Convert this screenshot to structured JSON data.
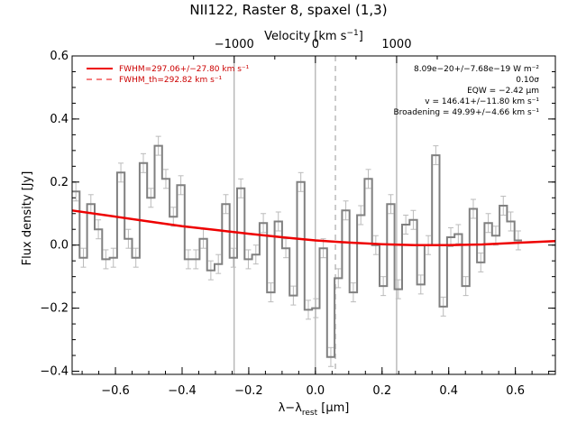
{
  "chart_data": {
    "type": "line",
    "title": "NII122, Raster 8, spaxel (1,3)",
    "xlabel_main": "λ−λ",
    "xlabel_sub": "rest",
    "xlabel_unit": " [μm]",
    "ylabel": "Flux density [Jy]",
    "top_xlabel": "Velocity [km s",
    "top_xlabel_sup": "−1",
    "top_xlabel_end": "]",
    "xlim": [
      -0.73,
      0.72
    ],
    "ylim": [
      -0.41,
      0.6
    ],
    "xticks": [
      -0.6,
      -0.4,
      -0.2,
      0.0,
      0.2,
      0.4,
      0.6
    ],
    "xtick_labels": [
      "−0.6",
      "−0.4",
      "−0.2",
      "0.0",
      "0.2",
      "0.4",
      "0.6"
    ],
    "yticks": [
      -0.4,
      -0.2,
      0.0,
      0.2,
      0.4,
      0.6
    ],
    "ytick_labels": [
      "−0.4",
      "−0.2",
      "0.0",
      "0.2",
      "0.4",
      "0.6"
    ],
    "top_ticks_lambda": [
      -0.2437,
      0.0,
      0.2437
    ],
    "top_tick_labels": [
      "−1000",
      "0",
      "1000"
    ],
    "vlines_solid": [
      -0.2437,
      0.0,
      0.2437
    ],
    "vline_dashed": 0.06,
    "bin_width": 0.0225,
    "x_start": -0.73,
    "series": [
      {
        "name": "spectrum",
        "values": [
          0.17,
          -0.04,
          0.13,
          0.05,
          -0.045,
          -0.04,
          0.23,
          0.02,
          -0.04,
          0.26,
          0.15,
          0.315,
          0.21,
          0.09,
          0.19,
          -0.045,
          -0.045,
          0.02,
          -0.08,
          -0.06,
          0.13,
          -0.04,
          0.18,
          -0.045,
          -0.03,
          0.07,
          -0.15,
          0.075,
          -0.01,
          -0.16,
          0.2,
          -0.205,
          -0.2,
          -0.01,
          -0.355,
          -0.105,
          0.11,
          -0.15,
          0.095,
          0.21,
          0.0,
          -0.13,
          0.13,
          -0.14,
          0.065,
          0.08,
          -0.125,
          0.0,
          0.285,
          -0.195,
          0.025,
          0.035,
          -0.13,
          0.115,
          -0.055,
          0.07,
          0.03,
          0.125,
          0.075,
          0.015
        ],
        "errors": [
          0.03,
          0.03,
          0.03,
          0.03,
          0.03,
          0.03,
          0.03,
          0.03,
          0.03,
          0.03,
          0.03,
          0.03,
          0.03,
          0.03,
          0.03,
          0.03,
          0.03,
          0.03,
          0.03,
          0.03,
          0.03,
          0.03,
          0.03,
          0.03,
          0.03,
          0.03,
          0.03,
          0.03,
          0.03,
          0.03,
          0.03,
          0.03,
          0.03,
          0.03,
          0.03,
          0.03,
          0.03,
          0.03,
          0.03,
          0.03,
          0.03,
          0.03,
          0.03,
          0.03,
          0.03,
          0.03,
          0.03,
          0.03,
          0.03,
          0.03,
          0.03,
          0.03,
          0.03,
          0.03,
          0.03,
          0.03,
          0.03,
          0.03,
          0.03,
          0.03
        ],
        "color": "#808080"
      },
      {
        "name": "FWHM=297.06+/−27.80 km s⁻¹",
        "x": [
          -0.73,
          -0.6,
          -0.5,
          -0.4,
          -0.3,
          -0.2,
          -0.1,
          0.0,
          0.1,
          0.2,
          0.3,
          0.4,
          0.5,
          0.6,
          0.72
        ],
        "y": [
          0.11,
          0.09,
          0.075,
          0.06,
          0.048,
          0.036,
          0.025,
          0.015,
          0.008,
          0.003,
          0.0,
          0.0,
          0.002,
          0.007,
          0.013
        ],
        "color": "#ee0000"
      }
    ],
    "legend": {
      "solid_label": "FWHM=297.06+/−27.80 km s⁻¹",
      "dashed_label": "FWHM_th=292.82 km s⁻¹"
    },
    "annotations": [
      "8.09e−20+/−7.68e−19 W m⁻²",
      "0.10σ",
      "EQW = −2.42 μm",
      "v = 146.41+/−11.80 km s⁻¹",
      "Broadening = 49.99+/−4.66 km s⁻¹"
    ]
  }
}
